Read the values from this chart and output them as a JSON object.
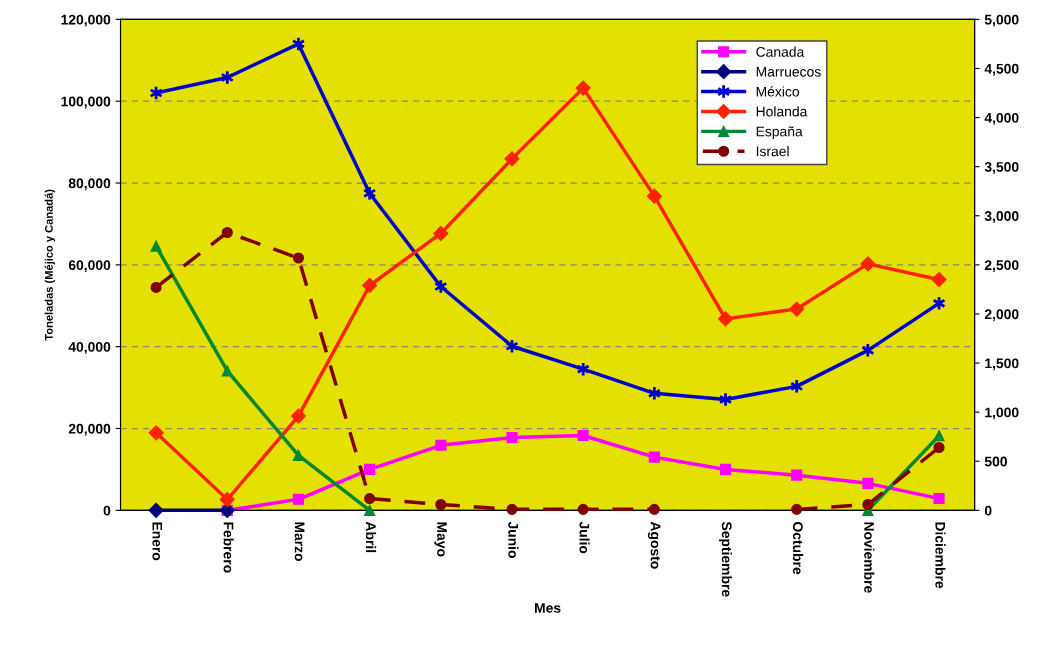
{
  "chart_data": {
    "type": "line",
    "xlabel": "Mes",
    "ylabel": "Toneladas (Méjico y Canadá)",
    "categories": [
      "Enero",
      "Febrero",
      "Marzo",
      "Abril",
      "Mayo",
      "Junio",
      "Julio",
      "Agosto",
      "Septiembre",
      "Octubre",
      "Noviembre",
      "Diciembre"
    ],
    "series": [
      {
        "name": "Canada",
        "color": "#ff00ff",
        "marker": "square",
        "values": [
          null,
          0,
          2700,
          10000,
          15900,
          17800,
          18300,
          13000,
          10000,
          8600,
          6600,
          2900
        ]
      },
      {
        "name": "Marruecos",
        "color": "#000080",
        "marker": "diamond",
        "axis": "y2",
        "values": [
          0,
          0,
          null,
          null,
          null,
          null,
          null,
          null,
          null,
          null,
          null,
          null
        ]
      },
      {
        "name": "México",
        "color": "#0000cc",
        "marker": "cross",
        "values": [
          102000,
          105800,
          114000,
          77500,
          54700,
          40100,
          34500,
          28600,
          27100,
          30300,
          39100,
          50600
        ]
      },
      {
        "name": "Holanda",
        "color": "#ff2200",
        "marker": "diamond",
        "axis": "y2",
        "values": [
          790,
          110,
          960,
          2290,
          2820,
          3580,
          4300,
          3200,
          1950,
          2050,
          2510,
          2350
        ]
      },
      {
        "name": "España",
        "color": "#008833",
        "marker": "triangle",
        "axis": "y2",
        "values": [
          2690,
          1420,
          560,
          0,
          null,
          null,
          null,
          null,
          null,
          null,
          0,
          760
        ]
      },
      {
        "name": "Israel",
        "color": "#800000",
        "marker": "circle",
        "line_style": "dashed",
        "axis": "y2",
        "values": [
          2270,
          2830,
          2570,
          120,
          60,
          10,
          10,
          10,
          null,
          10,
          60,
          640
        ]
      }
    ],
    "ylim": [
      0,
      120000
    ],
    "yticks": [
      {
        "value": 0,
        "label": "0"
      },
      {
        "value": 20000,
        "label": "20,000"
      },
      {
        "value": 40000,
        "label": "40,000"
      },
      {
        "value": 60000,
        "label": "60,000"
      },
      {
        "value": 80000,
        "label": "80,000"
      },
      {
        "value": 100000,
        "label": "100,000"
      },
      {
        "value": 120000,
        "label": "120,000"
      }
    ],
    "y2lim": [
      0,
      5000
    ],
    "y2ticks": [
      {
        "value": 0,
        "label": "0"
      },
      {
        "value": 500,
        "label": "500"
      },
      {
        "value": 1000,
        "label": "1,000"
      },
      {
        "value": 1500,
        "label": "1,500"
      },
      {
        "value": 2000,
        "label": "2,000"
      },
      {
        "value": 2500,
        "label": "2,500"
      },
      {
        "value": 3000,
        "label": "3,000"
      },
      {
        "value": 3500,
        "label": "3,500"
      },
      {
        "value": 4000,
        "label": "4,000"
      },
      {
        "value": 4500,
        "label": "4,500"
      },
      {
        "value": 5000,
        "label": "5,000"
      }
    ],
    "grid": true,
    "legend": "top right"
  }
}
